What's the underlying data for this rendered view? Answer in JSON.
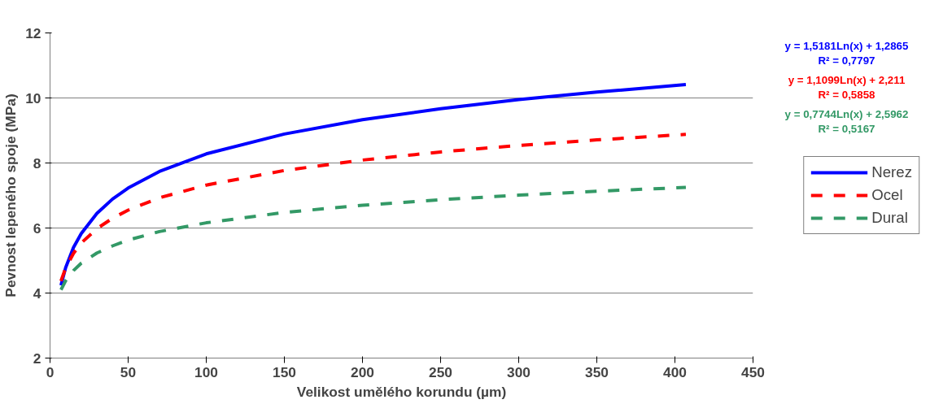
{
  "chart_data": {
    "type": "line",
    "xlabel": "Velikost umělého korundu (µm)",
    "ylabel": "Pevnost lepeného spoje (MPa)",
    "x": [
      7,
      10,
      15,
      20,
      30,
      40,
      50,
      70,
      100,
      150,
      200,
      250,
      300,
      350,
      407
    ],
    "series": [
      {
        "name": "Nerez",
        "color": "#0000ff",
        "line_style": "solid",
        "values": [
          4.24,
          4.78,
          5.4,
          5.83,
          6.45,
          6.89,
          7.23,
          7.74,
          8.28,
          8.89,
          9.33,
          9.67,
          9.95,
          10.18,
          10.41
        ]
      },
      {
        "name": "Ocel",
        "color": "#ff0000",
        "line_style": "dashed",
        "values": [
          4.37,
          4.77,
          5.22,
          5.54,
          5.98,
          6.3,
          6.55,
          6.93,
          7.32,
          7.77,
          8.09,
          8.34,
          8.54,
          8.71,
          8.88
        ]
      },
      {
        "name": "Dural",
        "color": "#339966",
        "line_style": "dashed",
        "values": [
          4.1,
          4.38,
          4.69,
          4.92,
          5.23,
          5.45,
          5.63,
          5.89,
          6.16,
          6.48,
          6.7,
          6.87,
          7.01,
          7.13,
          7.25
        ]
      }
    ],
    "xlim": [
      0,
      450
    ],
    "xticks": [
      0,
      50,
      100,
      150,
      200,
      250,
      300,
      350,
      400,
      450
    ],
    "ylim": [
      2,
      12
    ],
    "yticks": [
      2,
      4,
      6,
      8,
      10,
      12
    ],
    "grid": "y",
    "legend": "right",
    "marker": "none",
    "annotations": [
      "y = 1,5181Ln(x) + 1,2865\nR² = 0,7797",
      "y = 1,1099Ln(x) + 2,211\nR² = 0,5858",
      "y = 0,7744Ln(x) + 2,5962\nR² = 0,5167"
    ]
  }
}
